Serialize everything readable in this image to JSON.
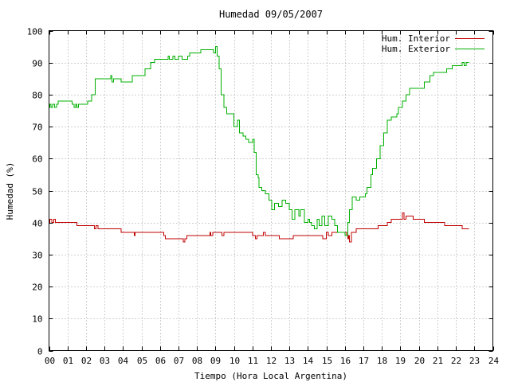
{
  "chart_data": {
    "type": "line",
    "title": "Humedad 09/05/2007",
    "xlabel": "Tiempo (Hora Local Argentina)",
    "ylabel": "Humedad (%)",
    "xlim": [
      0,
      24
    ],
    "ylim": [
      0,
      100
    ],
    "x_ticks": [
      "00",
      "01",
      "02",
      "03",
      "04",
      "05",
      "06",
      "07",
      "08",
      "09",
      "10",
      "11",
      "12",
      "13",
      "14",
      "15",
      "16",
      "17",
      "18",
      "19",
      "20",
      "21",
      "22",
      "23",
      "24"
    ],
    "y_ticks": [
      0,
      10,
      20,
      30,
      40,
      50,
      60,
      70,
      80,
      90,
      100
    ],
    "grid": true,
    "legend_position": "top-right",
    "series": [
      {
        "name": "Hum. Interior",
        "color": "#c00000",
        "points": [
          [
            0.0,
            40
          ],
          [
            0.05,
            41
          ],
          [
            0.15,
            40
          ],
          [
            0.25,
            41
          ],
          [
            0.35,
            40
          ],
          [
            1.5,
            40
          ],
          [
            1.5,
            39
          ],
          [
            2.4,
            39
          ],
          [
            2.45,
            38
          ],
          [
            2.55,
            39
          ],
          [
            2.65,
            38
          ],
          [
            3.9,
            38
          ],
          [
            3.9,
            37
          ],
          [
            4.6,
            37
          ],
          [
            4.6,
            36
          ],
          [
            4.65,
            37
          ],
          [
            6.2,
            37
          ],
          [
            6.2,
            36
          ],
          [
            6.3,
            35
          ],
          [
            7.2,
            35
          ],
          [
            7.25,
            34
          ],
          [
            7.35,
            35
          ],
          [
            7.45,
            36
          ],
          [
            8.7,
            36
          ],
          [
            8.7,
            37
          ],
          [
            8.75,
            36
          ],
          [
            8.85,
            37
          ],
          [
            9.3,
            37
          ],
          [
            9.35,
            36
          ],
          [
            9.45,
            37
          ],
          [
            11.0,
            37
          ],
          [
            11.0,
            36
          ],
          [
            11.15,
            35
          ],
          [
            11.25,
            36
          ],
          [
            11.5,
            36
          ],
          [
            11.6,
            37
          ],
          [
            11.7,
            36
          ],
          [
            12.3,
            36
          ],
          [
            12.45,
            35
          ],
          [
            13.2,
            35
          ],
          [
            13.2,
            36
          ],
          [
            14.7,
            36
          ],
          [
            14.8,
            35
          ],
          [
            15.0,
            37
          ],
          [
            15.1,
            36
          ],
          [
            15.3,
            37
          ],
          [
            16.0,
            37
          ],
          [
            16.1,
            36
          ],
          [
            16.15,
            35
          ],
          [
            16.2,
            36
          ],
          [
            16.25,
            34
          ],
          [
            16.35,
            37
          ],
          [
            16.6,
            38
          ],
          [
            17.6,
            38
          ],
          [
            17.8,
            39
          ],
          [
            18.3,
            40
          ],
          [
            18.5,
            41
          ],
          [
            19.0,
            41
          ],
          [
            19.1,
            43
          ],
          [
            19.2,
            41
          ],
          [
            19.3,
            42
          ],
          [
            19.6,
            42
          ],
          [
            19.7,
            41
          ],
          [
            20.3,
            41
          ],
          [
            20.3,
            40
          ],
          [
            21.4,
            40
          ],
          [
            21.4,
            39
          ],
          [
            22.3,
            39
          ],
          [
            22.35,
            38
          ],
          [
            22.7,
            38
          ]
        ]
      },
      {
        "name": "Hum. Exterior",
        "color": "#00b000",
        "points": [
          [
            0.0,
            76
          ],
          [
            0.05,
            77
          ],
          [
            0.1,
            76
          ],
          [
            0.2,
            77
          ],
          [
            0.3,
            76
          ],
          [
            0.4,
            77
          ],
          [
            0.5,
            78
          ],
          [
            1.2,
            78
          ],
          [
            1.25,
            77
          ],
          [
            1.35,
            76
          ],
          [
            1.45,
            77
          ],
          [
            1.5,
            76
          ],
          [
            1.6,
            77
          ],
          [
            2.1,
            77
          ],
          [
            2.1,
            78
          ],
          [
            2.3,
            80
          ],
          [
            2.5,
            85
          ],
          [
            3.3,
            85
          ],
          [
            3.35,
            86
          ],
          [
            3.4,
            84
          ],
          [
            3.5,
            85
          ],
          [
            3.9,
            85
          ],
          [
            3.9,
            84
          ],
          [
            4.5,
            84
          ],
          [
            4.5,
            86
          ],
          [
            5.0,
            86
          ],
          [
            5.2,
            88
          ],
          [
            5.5,
            90
          ],
          [
            5.7,
            91
          ],
          [
            6.4,
            91
          ],
          [
            6.45,
            92
          ],
          [
            6.5,
            91
          ],
          [
            6.7,
            92
          ],
          [
            6.8,
            91
          ],
          [
            7.0,
            92
          ],
          [
            7.2,
            91
          ],
          [
            7.5,
            92
          ],
          [
            7.6,
            93
          ],
          [
            8.1,
            93
          ],
          [
            8.2,
            94
          ],
          [
            8.5,
            94
          ],
          [
            8.8,
            94
          ],
          [
            8.9,
            93
          ],
          [
            9.0,
            95
          ],
          [
            9.1,
            92
          ],
          [
            9.2,
            88
          ],
          [
            9.3,
            80
          ],
          [
            9.45,
            76
          ],
          [
            9.6,
            74
          ],
          [
            9.9,
            74
          ],
          [
            10.0,
            70
          ],
          [
            10.2,
            72
          ],
          [
            10.3,
            68
          ],
          [
            10.5,
            67
          ],
          [
            10.65,
            66
          ],
          [
            10.8,
            65
          ],
          [
            11.0,
            66
          ],
          [
            11.1,
            62
          ],
          [
            11.2,
            55
          ],
          [
            11.3,
            54
          ],
          [
            11.35,
            51
          ],
          [
            11.5,
            50
          ],
          [
            11.7,
            49
          ],
          [
            11.9,
            47
          ],
          [
            12.05,
            44
          ],
          [
            12.2,
            46
          ],
          [
            12.4,
            45
          ],
          [
            12.6,
            47
          ],
          [
            12.8,
            46
          ],
          [
            13.0,
            44
          ],
          [
            13.15,
            41
          ],
          [
            13.3,
            44
          ],
          [
            13.5,
            42
          ],
          [
            13.6,
            44
          ],
          [
            13.8,
            40
          ],
          [
            14.0,
            41
          ],
          [
            14.1,
            40
          ],
          [
            14.2,
            39
          ],
          [
            14.35,
            38
          ],
          [
            14.5,
            41
          ],
          [
            14.6,
            39
          ],
          [
            14.75,
            42
          ],
          [
            14.9,
            39
          ],
          [
            15.1,
            42
          ],
          [
            15.3,
            41
          ],
          [
            15.45,
            39
          ],
          [
            15.6,
            37
          ],
          [
            15.75,
            37
          ],
          [
            15.9,
            37
          ],
          [
            16.0,
            36
          ],
          [
            16.15,
            40
          ],
          [
            16.25,
            44
          ],
          [
            16.4,
            48
          ],
          [
            16.6,
            47
          ],
          [
            16.8,
            48
          ],
          [
            17.1,
            49
          ],
          [
            17.2,
            51
          ],
          [
            17.4,
            55
          ],
          [
            17.5,
            57
          ],
          [
            17.7,
            60
          ],
          [
            17.9,
            64
          ],
          [
            18.1,
            68
          ],
          [
            18.3,
            72
          ],
          [
            18.5,
            73
          ],
          [
            18.8,
            74
          ],
          [
            18.9,
            76
          ],
          [
            19.1,
            78
          ],
          [
            19.3,
            80
          ],
          [
            19.5,
            82
          ],
          [
            20.2,
            82
          ],
          [
            20.3,
            84
          ],
          [
            20.6,
            86
          ],
          [
            20.8,
            87
          ],
          [
            21.4,
            87
          ],
          [
            21.5,
            88
          ],
          [
            21.8,
            89
          ],
          [
            22.3,
            89
          ],
          [
            22.35,
            90
          ],
          [
            22.45,
            89
          ],
          [
            22.55,
            90
          ],
          [
            22.7,
            90
          ]
        ]
      }
    ]
  }
}
